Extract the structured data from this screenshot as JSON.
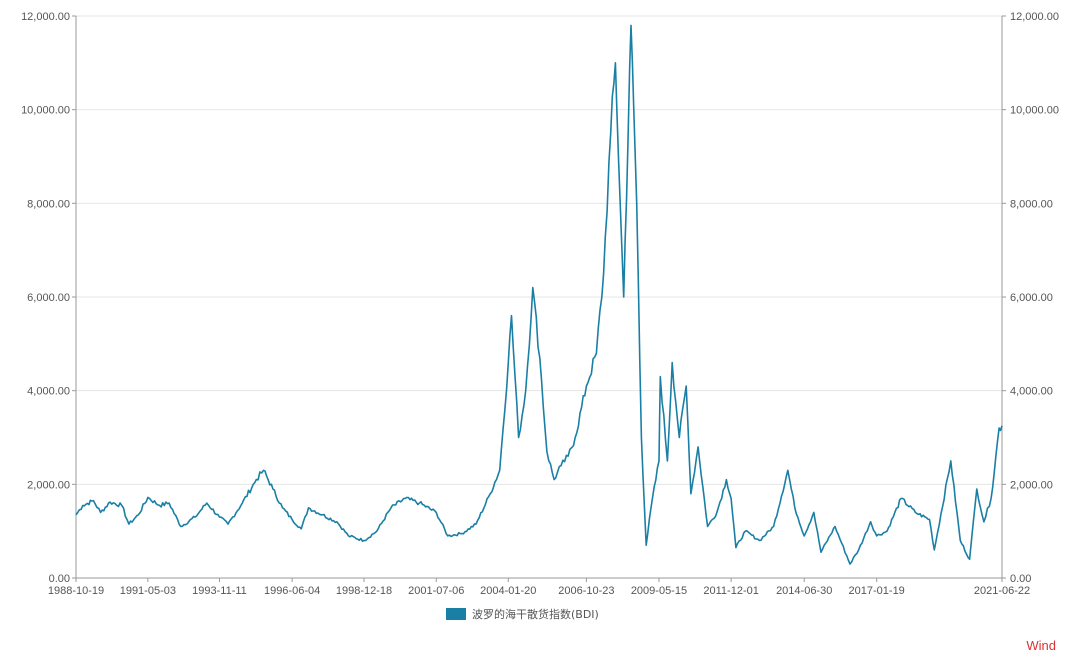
{
  "chart_data": {
    "type": "line",
    "title": "",
    "xlabel": "",
    "ylabel": "",
    "ylim": [
      0,
      12000
    ],
    "y_ticks": [
      "0.00",
      "2,000.00",
      "4,000.00",
      "6,000.00",
      "8,000.00",
      "10,000.00",
      "12,000.00"
    ],
    "y_tick_values": [
      0,
      2000,
      4000,
      6000,
      8000,
      10000,
      12000
    ],
    "x_tick_labels": [
      "1988-10-19",
      "1991-05-03",
      "1993-11-11",
      "1996-06-04",
      "1998-12-18",
      "2001-07-06",
      "2004-01-20",
      "2006-10-23",
      "2009-05-15",
      "2011-12-01",
      "2014-06-30",
      "2017-01-19",
      "2021-06-22"
    ],
    "grid": true,
    "legend": "bottom-center",
    "series": [
      {
        "name": "波罗的海干散货指数(BDI)",
        "color": "#1a7fa5",
        "points": [
          [
            "1988-10-19",
            1350
          ],
          [
            "1989-01-15",
            1550
          ],
          [
            "1989-06-01",
            1650
          ],
          [
            "1989-09-01",
            1400
          ],
          [
            "1990-01-01",
            1620
          ],
          [
            "1990-06-01",
            1550
          ],
          [
            "1990-09-01",
            1150
          ],
          [
            "1991-01-01",
            1350
          ],
          [
            "1991-05-03",
            1720
          ],
          [
            "1991-10-01",
            1550
          ],
          [
            "1992-02-01",
            1600
          ],
          [
            "1992-07-01",
            1100
          ],
          [
            "1993-01-01",
            1300
          ],
          [
            "1993-06-01",
            1600
          ],
          [
            "1993-11-11",
            1300
          ],
          [
            "1994-03-01",
            1150
          ],
          [
            "1994-09-01",
            1600
          ],
          [
            "1995-03-01",
            2100
          ],
          [
            "1995-06-01",
            2300
          ],
          [
            "1995-10-01",
            1900
          ],
          [
            "1996-02-01",
            1500
          ],
          [
            "1996-06-04",
            1250
          ],
          [
            "1996-10-01",
            1050
          ],
          [
            "1997-01-01",
            1500
          ],
          [
            "1997-07-01",
            1350
          ],
          [
            "1998-01-01",
            1200
          ],
          [
            "1998-06-01",
            900
          ],
          [
            "1998-12-18",
            800
          ],
          [
            "1999-06-01",
            1000
          ],
          [
            "1999-12-01",
            1500
          ],
          [
            "2000-06-01",
            1700
          ],
          [
            "2000-12-01",
            1600
          ],
          [
            "2001-07-06",
            1400
          ],
          [
            "2001-12-01",
            900
          ],
          [
            "2002-06-01",
            950
          ],
          [
            "2002-12-01",
            1150
          ],
          [
            "2003-06-01",
            1800
          ],
          [
            "2003-10-01",
            2300
          ],
          [
            "2004-01-20",
            4600
          ],
          [
            "2004-03-01",
            5600
          ],
          [
            "2004-06-01",
            3000
          ],
          [
            "2004-09-01",
            4000
          ],
          [
            "2004-12-01",
            6200
          ],
          [
            "2005-03-01",
            4700
          ],
          [
            "2005-06-01",
            2700
          ],
          [
            "2005-09-01",
            2100
          ],
          [
            "2005-12-01",
            2400
          ],
          [
            "2006-03-01",
            2600
          ],
          [
            "2006-06-01",
            3000
          ],
          [
            "2006-10-23",
            4100
          ],
          [
            "2007-03-01",
            4800
          ],
          [
            "2007-06-01",
            6500
          ],
          [
            "2007-09-01",
            9500
          ],
          [
            "2007-11-01",
            11000
          ],
          [
            "2008-01-01",
            8000
          ],
          [
            "2008-02-15",
            6000
          ],
          [
            "2008-05-20",
            11800
          ],
          [
            "2008-08-01",
            8000
          ],
          [
            "2008-10-01",
            3000
          ],
          [
            "2008-12-01",
            700
          ],
          [
            "2009-02-01",
            1500
          ],
          [
            "2009-05-15",
            2500
          ],
          [
            "2009-06-01",
            4300
          ],
          [
            "2009-09-01",
            2500
          ],
          [
            "2009-11-01",
            4600
          ],
          [
            "2010-02-01",
            3000
          ],
          [
            "2010-05-01",
            4100
          ],
          [
            "2010-07-01",
            1800
          ],
          [
            "2010-10-01",
            2800
          ],
          [
            "2011-02-01",
            1100
          ],
          [
            "2011-06-01",
            1400
          ],
          [
            "2011-10-01",
            2100
          ],
          [
            "2011-12-01",
            1700
          ],
          [
            "2012-02-01",
            650
          ],
          [
            "2012-06-01",
            1000
          ],
          [
            "2012-12-01",
            800
          ],
          [
            "2013-06-01",
            1100
          ],
          [
            "2013-12-01",
            2300
          ],
          [
            "2014-03-01",
            1500
          ],
          [
            "2014-06-30",
            900
          ],
          [
            "2014-11-01",
            1400
          ],
          [
            "2015-02-01",
            550
          ],
          [
            "2015-08-01",
            1100
          ],
          [
            "2016-02-10",
            300
          ],
          [
            "2016-06-01",
            600
          ],
          [
            "2016-11-01",
            1200
          ],
          [
            "2017-01-19",
            900
          ],
          [
            "2017-06-01",
            1000
          ],
          [
            "2017-12-01",
            1700
          ],
          [
            "2018-06-01",
            1400
          ],
          [
            "2018-12-01",
            1250
          ],
          [
            "2019-02-01",
            600
          ],
          [
            "2019-09-01",
            2500
          ],
          [
            "2020-01-01",
            800
          ],
          [
            "2020-05-01",
            400
          ],
          [
            "2020-08-01",
            1900
          ],
          [
            "2020-11-01",
            1200
          ],
          [
            "2021-02-01",
            1700
          ],
          [
            "2021-05-15",
            3200
          ],
          [
            "2021-06-22",
            3250
          ]
        ]
      }
    ]
  },
  "legend": {
    "label": "波罗的海干散货指数(BDI)",
    "color": "#1a7fa5"
  },
  "watermark": {
    "text": "Wind",
    "color": "#e03030"
  }
}
